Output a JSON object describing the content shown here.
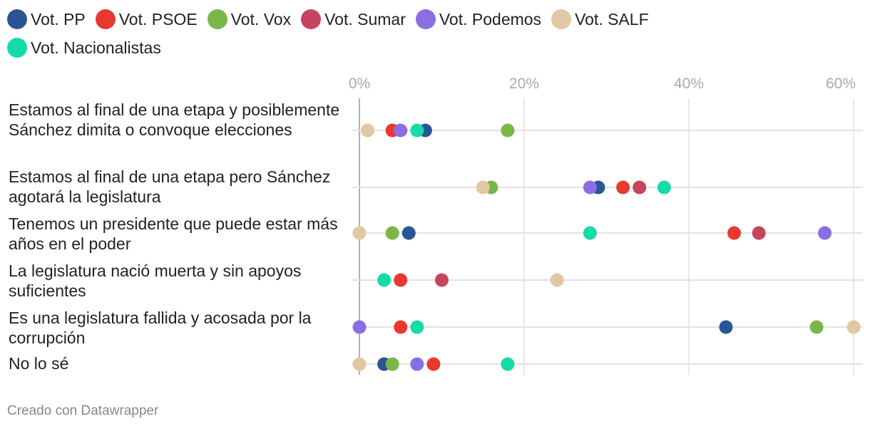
{
  "chart_data": {
    "type": "dot",
    "title": "",
    "xlabel": "",
    "ylabel": "",
    "xlim": [
      0,
      60
    ],
    "x_ticks": [
      0,
      20,
      40,
      60
    ],
    "x_tick_labels": [
      "0%",
      "20%",
      "40%",
      "60%"
    ],
    "grid": true,
    "legend_position": "top",
    "categories": [
      "Estamos al final de una etapa y posiblemente Sánchez dimita o convoque elecciones",
      "Estamos al final de una etapa pero Sánchez agotará la legislatura",
      "Tenemos un presidente que puede estar más años en el poder",
      "La legislatura nació muerta y sin apoyos suficientes",
      "Es una legislatura fallida y acosada por la corrupción",
      "No lo sé"
    ],
    "series": [
      {
        "name": "Vot. PP",
        "color": "#2a5595",
        "values": [
          8,
          29,
          6,
          null,
          44.5,
          3
        ]
      },
      {
        "name": "Vot. PSOE",
        "color": "#e8392f",
        "values": [
          4,
          32,
          45.5,
          5,
          5,
          9
        ]
      },
      {
        "name": "Vot. Vox",
        "color": "#7ab648",
        "values": [
          18,
          16,
          4,
          null,
          55.5,
          4
        ]
      },
      {
        "name": "Vot. Sumar",
        "color": "#c6445e",
        "values": [
          null,
          34,
          48.5,
          10,
          null,
          null
        ]
      },
      {
        "name": "Vot. Podemos",
        "color": "#8b6ee3",
        "values": [
          5,
          28,
          56.5,
          null,
          0,
          7
        ]
      },
      {
        "name": "Vot. SALF",
        "color": "#e1c7a3",
        "values": [
          1,
          15,
          0,
          24,
          60,
          0
        ]
      },
      {
        "name": "Vot. Nacionalistas",
        "color": "#14dca8",
        "values": [
          7,
          37,
          28,
          3,
          7,
          18
        ]
      }
    ]
  },
  "footer": "Creado con Datawrapper"
}
